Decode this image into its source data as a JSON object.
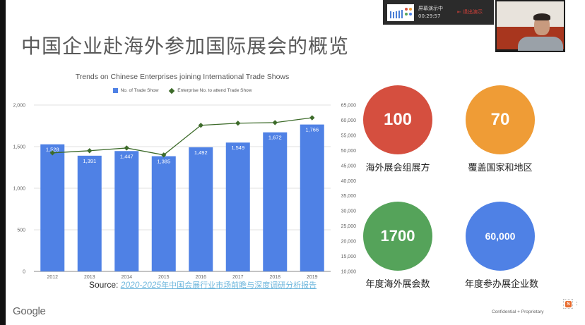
{
  "slide": {
    "title": "中国企业赴海外参加国际展会的概览",
    "footer_logo": "Google",
    "footer_confidential": "Confidential + Proprietary",
    "source_prefix": "Source: ",
    "source_link_text": "2020-2025",
    "source_link_text_cn": "年中国会展行业市场前瞻与深度调研分析报告"
  },
  "presenter_bar": {
    "status": "屏幕演示中",
    "timer": "00:29:57",
    "exit_label": "退出演示",
    "exit_icon": "exit-icon"
  },
  "stats": [
    {
      "value": "100",
      "label": "海外展会组展方",
      "color": "#d54f3f"
    },
    {
      "value": "70",
      "label": "覆盖国家和地区",
      "color": "#ef9c36"
    },
    {
      "value": "1700",
      "label": "年度海外展会数",
      "color": "#55a35a"
    },
    {
      "value": "60,000",
      "label": "年度参办展企业数",
      "color": "#4f81e5"
    }
  ],
  "ime": {
    "icon": "sogou-s-icon",
    "glyph": "S",
    "more": ":"
  },
  "chart_data": {
    "type": "bar",
    "title": "Trends on Chinese Enterprises joining International Trade Shows",
    "categories": [
      "2012",
      "2013",
      "2014",
      "2015",
      "2016",
      "2017",
      "2018",
      "2019"
    ],
    "series": [
      {
        "name": "No. of Trade Show",
        "type": "bar",
        "axis": "left",
        "color": "#4f81e5",
        "values": [
          1528,
          1391,
          1447,
          1385,
          1492,
          1549,
          1672,
          1766
        ],
        "labels": [
          "1,528",
          "1,391",
          "1,447",
          "1,385",
          "1,492",
          "1,549",
          "1,672",
          "1,766"
        ]
      },
      {
        "name": "Enterprise No. to attend Trade Show",
        "type": "line",
        "axis": "right",
        "color": "#3d6b2a",
        "marker": "diamond",
        "values": [
          49200,
          49900,
          50800,
          48500,
          58300,
          59000,
          59200,
          60800
        ]
      }
    ],
    "left_axis": {
      "min": 0,
      "max": 2000,
      "ticks": [
        "0",
        "500",
        "1,000",
        "1,500",
        "2,000"
      ]
    },
    "right_axis": {
      "min": 10000,
      "max": 65000,
      "ticks": [
        "10,000",
        "15,000",
        "20,000",
        "25,000",
        "30,000",
        "35,000",
        "40,000",
        "45,000",
        "50,000",
        "55,000",
        "60,000",
        "65,000"
      ]
    },
    "grid": true,
    "legend_position": "top"
  }
}
